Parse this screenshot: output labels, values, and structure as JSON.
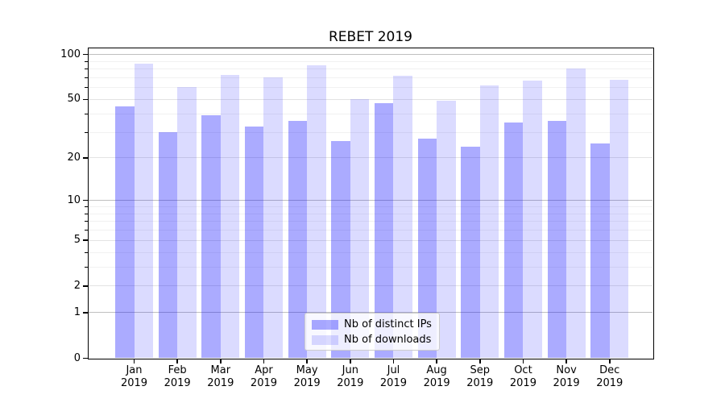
{
  "title": "REBET 2019",
  "chart_data": {
    "type": "bar",
    "title": "REBET 2019",
    "categories": [
      "Jan 2019",
      "Feb 2019",
      "Mar 2019",
      "Apr 2019",
      "May 2019",
      "Jun 2019",
      "Jul 2019",
      "Aug 2019",
      "Sep 2019",
      "Oct 2019",
      "Nov 2019",
      "Dec 2019"
    ],
    "series": [
      {
        "name": "Nb of distinct IPs",
        "color": "rgba(0,0,255,0.33)",
        "values": [
          45,
          30,
          39,
          33,
          36,
          26,
          47,
          27,
          24,
          35,
          36,
          25
        ]
      },
      {
        "name": "Nb of downloads",
        "color": "rgba(0,0,255,0.14)",
        "values": [
          87,
          61,
          73,
          70,
          85,
          50,
          72,
          49,
          62,
          67,
          81,
          68
        ]
      }
    ],
    "yscale": "log1p",
    "yticks": [
      0,
      1,
      2,
      5,
      10,
      20,
      50,
      100
    ],
    "yticks_minor": [
      3,
      4,
      6,
      7,
      8,
      9,
      30,
      40,
      60,
      70,
      80,
      90
    ],
    "yticks_mid": [
      2,
      5,
      20,
      50
    ],
    "ylim": [
      0,
      110
    ],
    "xlabel": "",
    "ylabel": "",
    "grid": true,
    "legend_position": "lower center"
  }
}
